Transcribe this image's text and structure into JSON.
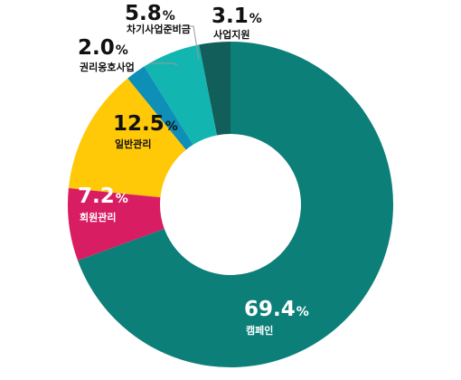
{
  "chart_data": {
    "type": "pie",
    "title": "",
    "categories": [
      "사업지원",
      "차기사업준비금",
      "권리옹호사업",
      "일반관리",
      "회원관리",
      "캠페인"
    ],
    "values": [
      3.1,
      5.8,
      2.0,
      12.5,
      7.2,
      69.4
    ],
    "value_labels": [
      "3.1",
      "5.8",
      "2.0",
      "12.5",
      "7.2",
      "69.4"
    ],
    "unit": "%",
    "colors": [
      "#115e5a",
      "#12b5b0",
      "#0e8fb8",
      "#ffc907",
      "#d81d62",
      "#0b7f78"
    ],
    "donut": true,
    "legend": "none"
  }
}
